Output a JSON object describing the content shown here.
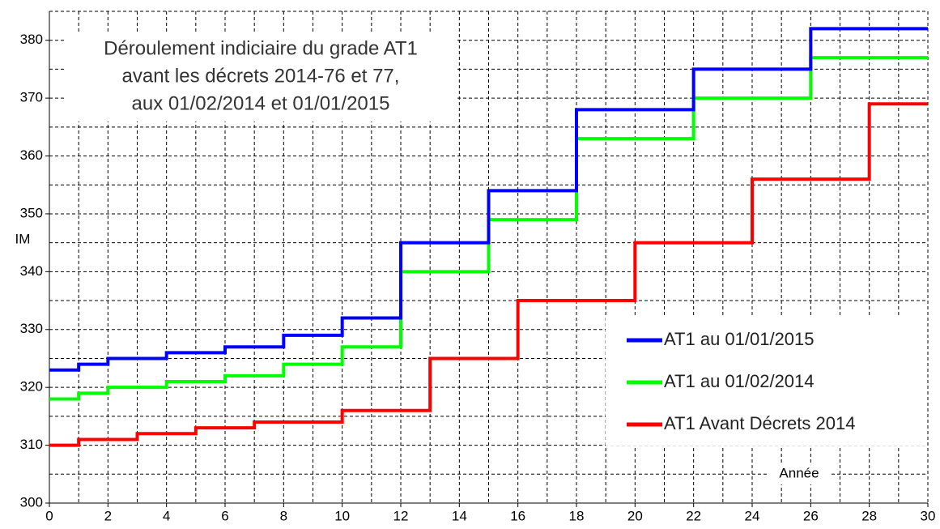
{
  "chart_data": {
    "type": "step",
    "title": [
      "Déroulement indiciaire du grade AT1",
      "avant les décrets 2014-76 et 77,",
      "aux 01/02/2014 et 01/01/2015"
    ],
    "x_label": "Année",
    "y_label": "IM",
    "xlim": [
      0,
      30
    ],
    "ylim": [
      300,
      385
    ],
    "xticks": [
      0,
      2,
      4,
      6,
      8,
      10,
      12,
      14,
      16,
      18,
      20,
      22,
      24,
      26,
      28,
      30
    ],
    "yticks": [
      300,
      310,
      320,
      330,
      340,
      350,
      360,
      370,
      380
    ],
    "xgrid": [
      0,
      1,
      2,
      3,
      4,
      5,
      6,
      7,
      8,
      9,
      10,
      11,
      12,
      13,
      14,
      15,
      16,
      17,
      18,
      19,
      20,
      21,
      22,
      23,
      24,
      25,
      26,
      27,
      28,
      29,
      30
    ],
    "ygrid": [
      300,
      305,
      310,
      315,
      320,
      325,
      330,
      335,
      340,
      345,
      350,
      355,
      360,
      365,
      370,
      375,
      380,
      385
    ],
    "grid": true,
    "legend": "lower right",
    "series": [
      {
        "name": "AT1 au 01/01/2015",
        "color": "#0000ff",
        "x": [
          0,
          1,
          2,
          4,
          6,
          8,
          10,
          12,
          15,
          18,
          22,
          26,
          30
        ],
        "values": [
          323,
          324,
          325,
          326,
          327,
          329,
          332,
          345,
          354,
          368,
          375,
          382,
          382
        ]
      },
      {
        "name": "AT1 au 01/02/2014",
        "color": "#00ff00",
        "x": [
          0,
          1,
          2,
          4,
          6,
          8,
          10,
          12,
          15,
          18,
          22,
          26,
          30
        ],
        "values": [
          318,
          319,
          320,
          321,
          322,
          324,
          327,
          340,
          349,
          363,
          370,
          377,
          377
        ]
      },
      {
        "name": "AT1 Avant Décrets 2014",
        "color": "#ff0000",
        "x": [
          0,
          1,
          3,
          5,
          7,
          10,
          13,
          16,
          20,
          24,
          28,
          30
        ],
        "values": [
          310,
          311,
          312,
          313,
          314,
          316,
          325,
          335,
          345,
          356,
          369,
          369
        ]
      }
    ]
  }
}
